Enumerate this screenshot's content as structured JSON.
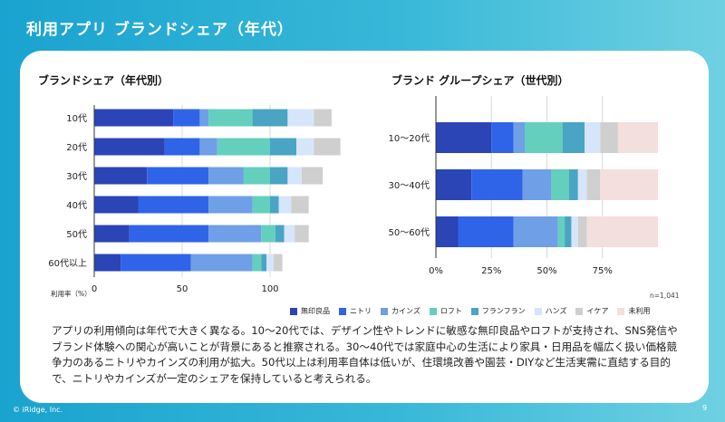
{
  "slide": {
    "title": "利用アプリ ブランドシェア（年代）",
    "copyright": "© iRidge, Inc.",
    "page_number": "9"
  },
  "left_chart_title": "ブランドシェア（年代別）",
  "right_chart_title": "ブランド グループシェア（世代別）",
  "note": "n=1,041",
  "brands": [
    {
      "name": "無印良品",
      "color": "#2b44b6"
    },
    {
      "name": "ニトリ",
      "color": "#2f64e8"
    },
    {
      "name": "カインズ",
      "color": "#6f9fe6"
    },
    {
      "name": "ロフト",
      "color": "#64cfbd"
    },
    {
      "name": "フランフラン",
      "color": "#4aa4c4"
    },
    {
      "name": "ハンズ",
      "color": "#d7e5fa"
    },
    {
      "name": "イケア",
      "color": "#cfcfcf"
    },
    {
      "name": "未利用",
      "color": "#f3dfdd"
    }
  ],
  "description": "アプリの利用傾向は年代で大きく異なる。10〜20代では、デザイン性やトレンドに敏感な無印良品やロフトが支持され、SNS発信やブランド体験への関心が高いことが背景にあると推察される。30〜40代では家庭中心の生活により家具・日用品を幅広く扱い価格競争力のあるニトリやカインズの利用が拡大。50代以上は利用率自体は低いが、住環境改善や園芸・DIYなど生活実需に直結する目的で、ニトリやカインズが一定のシェアを保持していると考えられる。",
  "chart_data": [
    {
      "type": "bar",
      "orientation": "horizontal",
      "stacked": true,
      "title": "ブランドシェア（年代別）",
      "xlabel": "利用率（%）",
      "xlim": [
        0,
        140
      ],
      "xticks": [
        0,
        50,
        100
      ],
      "categories": [
        "10代",
        "20代",
        "30代",
        "40代",
        "50代",
        "60代以上"
      ],
      "series": [
        {
          "name": "無印良品",
          "values": [
            45,
            40,
            30,
            25,
            20,
            15
          ]
        },
        {
          "name": "ニトリ",
          "values": [
            15,
            20,
            35,
            40,
            45,
            40
          ]
        },
        {
          "name": "カインズ",
          "values": [
            5,
            10,
            20,
            25,
            30,
            35
          ]
        },
        {
          "name": "ロフト",
          "values": [
            25,
            30,
            15,
            10,
            8,
            5
          ]
        },
        {
          "name": "フランフラン",
          "values": [
            20,
            15,
            10,
            5,
            5,
            3
          ]
        },
        {
          "name": "ハンズ",
          "values": [
            15,
            10,
            8,
            7,
            6,
            4
          ]
        },
        {
          "name": "イケア",
          "values": [
            10,
            15,
            12,
            10,
            8,
            5
          ]
        }
      ],
      "grid": true
    },
    {
      "type": "bar",
      "orientation": "horizontal",
      "stacked": true,
      "title": "ブランド グループシェア（世代別）",
      "xlim": [
        0,
        100
      ],
      "xticks": [
        "0%",
        "25%",
        "50%",
        "75%"
      ],
      "xtick_values": [
        0,
        25,
        50,
        75
      ],
      "categories": [
        "10〜20代",
        "30〜40代",
        "50〜60代"
      ],
      "series": [
        {
          "name": "無印良品",
          "values": [
            25,
            16,
            10
          ]
        },
        {
          "name": "ニトリ",
          "values": [
            10,
            23,
            25
          ]
        },
        {
          "name": "カインズ",
          "values": [
            5,
            13,
            20
          ]
        },
        {
          "name": "ロフト",
          "values": [
            17,
            8,
            3
          ]
        },
        {
          "name": "フランフラン",
          "values": [
            10,
            4,
            3
          ]
        },
        {
          "name": "ハンズ",
          "values": [
            7,
            4,
            3
          ]
        },
        {
          "name": "イケア",
          "values": [
            8,
            6,
            4
          ]
        },
        {
          "name": "未利用",
          "values": [
            18,
            26,
            32
          ]
        }
      ],
      "grid": true
    }
  ]
}
